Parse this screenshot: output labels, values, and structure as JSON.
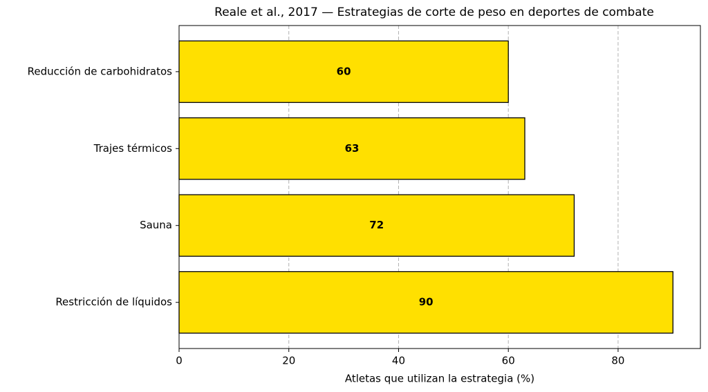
{
  "chart_data": {
    "type": "barh",
    "title": "Reale et al., 2017 — Estrategias de corte de peso en deportes de combate",
    "xlabel": "Atletas que utilizan la estrategia (%)",
    "categories": [
      "Reducción de carbohidratos",
      "Trajes térmicos",
      "Sauna",
      "Restricción de líquidos"
    ],
    "values": [
      60,
      63,
      72,
      90
    ],
    "color": "#ffe000",
    "xlim": [
      0,
      95
    ],
    "xticks": [
      0,
      20,
      40,
      60,
      80
    ],
    "grid": true
  }
}
